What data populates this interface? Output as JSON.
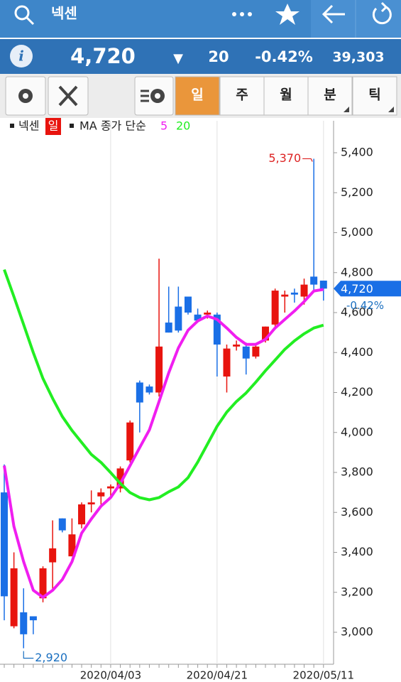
{
  "header": {
    "title": "넥센"
  },
  "quote": {
    "info_icon": "i",
    "price": "4,720",
    "arrow": "▼",
    "change": "20",
    "change_pct": "-0.42%",
    "volume": "39,303"
  },
  "tabs": [
    "일",
    "주",
    "월",
    "분",
    "틱"
  ],
  "chart_data": {
    "type": "candlestick",
    "legend": {
      "name": "넥센",
      "period": "일",
      "ma_label": "MA 종가 단순"
    },
    "categories": [
      null,
      null,
      null,
      null,
      null,
      null,
      null,
      null,
      null,
      null,
      null,
      "2020/04/03",
      null,
      null,
      null,
      null,
      null,
      null,
      null,
      null,
      null,
      null,
      "2020/04/21",
      null,
      null,
      null,
      null,
      null,
      null,
      null,
      null,
      null,
      null,
      "2020/05/11"
    ],
    "open": [
      3700,
      3030,
      3100,
      3080,
      3170,
      3350,
      3570,
      3380,
      3540,
      3640,
      3680,
      3720,
      3720,
      3860,
      4250,
      4230,
      4200,
      4550,
      4630,
      4680,
      4590,
      4590,
      4590,
      4280,
      4430,
      4430,
      4380,
      4460,
      4540,
      4680,
      4700,
      4680,
      4780,
      4760
    ],
    "high": [
      3840,
      3400,
      3220,
      3080,
      3330,
      3560,
      3570,
      3570,
      3650,
      3710,
      3720,
      3740,
      3830,
      4060,
      4260,
      4240,
      4870,
      4730,
      4730,
      4680,
      4620,
      4610,
      4600,
      4440,
      4460,
      4450,
      4440,
      4530,
      4720,
      4710,
      4720,
      4770,
      5370,
      4760
    ],
    "low": [
      3060,
      3020,
      2920,
      2990,
      3150,
      3210,
      3500,
      3380,
      3520,
      3600,
      3640,
      3680,
      3700,
      3850,
      4000,
      4190,
      4180,
      4500,
      4500,
      4590,
      4550,
      4570,
      4280,
      4200,
      4410,
      4290,
      4370,
      4450,
      4530,
      4600,
      4650,
      4640,
      4700,
      4660
    ],
    "close": [
      3180,
      3320,
      2990,
      3060,
      3320,
      3420,
      3510,
      3490,
      3640,
      3650,
      3700,
      3730,
      3820,
      4050,
      4150,
      4200,
      4430,
      4500,
      4510,
      4600,
      4560,
      4600,
      4440,
      4420,
      4440,
      4370,
      4430,
      4530,
      4710,
      4690,
      4690,
      4740,
      4740,
      4720
    ],
    "up_color": "#e8140e",
    "down_color": "#1a6fe6",
    "series": [
      {
        "name": "5",
        "color": "#f01ef0",
        "values": [
          3834,
          3530,
          3353,
          3210,
          3175,
          3210,
          3264,
          3353,
          3496,
          3567,
          3631,
          3674,
          3745,
          3834,
          3924,
          4013,
          4155,
          4298,
          4423,
          4512,
          4558,
          4583,
          4566,
          4523,
          4476,
          4441,
          4441,
          4466,
          4523,
          4566,
          4608,
          4655,
          4708,
          4716
        ]
      },
      {
        "name": "20",
        "color": "#22ee22",
        "values": [
          4815,
          4680,
          4540,
          4400,
          4270,
          4170,
          4080,
          4010,
          3950,
          3890,
          3850,
          3799,
          3745,
          3699,
          3674,
          3663,
          3674,
          3703,
          3727,
          3774,
          3852,
          3941,
          4031,
          4102,
          4155,
          4198,
          4252,
          4309,
          4362,
          4416,
          4459,
          4494,
          4523,
          4537
        ]
      }
    ],
    "ylim": [
      2840,
      5560
    ],
    "yticks": [
      {
        "value": 3000,
        "label": "3,000"
      },
      {
        "value": 3200,
        "label": "3,200"
      },
      {
        "value": 3400,
        "label": "3,400"
      },
      {
        "value": 3600,
        "label": "3,600"
      },
      {
        "value": 3800,
        "label": "3,800"
      },
      {
        "value": 4000,
        "label": "4,000"
      },
      {
        "value": 4200,
        "label": "4,200"
      },
      {
        "value": 4400,
        "label": "4,400"
      },
      {
        "value": 4600,
        "label": "4,600"
      },
      {
        "value": 4800,
        "label": "4,800"
      },
      {
        "value": 5000,
        "label": "5,000"
      },
      {
        "value": 5200,
        "label": "5,200"
      },
      {
        "value": 5400,
        "label": "5,400"
      }
    ],
    "annotations": {
      "high": "5,370",
      "low": "2,920",
      "last_price": "4,720",
      "last_change": "-0.42%"
    }
  }
}
